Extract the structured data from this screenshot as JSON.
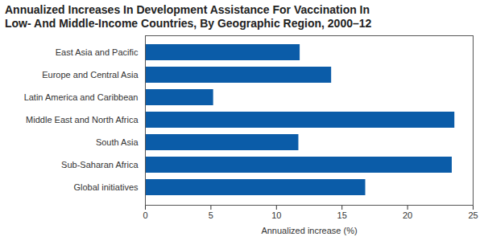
{
  "chart_data": {
    "type": "bar",
    "orientation": "horizontal",
    "title": "Annualized Increases In Development Assistance For Vaccination In Low- And Middle-Income Countries, By Geographic Region, 2000–12",
    "xlabel": "Annualized increase (%)",
    "categories": [
      "East Asia and Pacific",
      "Europe and Central Asia",
      "Latin America and Caribbean",
      "Middle East and North Africa",
      "South Asia",
      "Sub-Saharan Africa",
      "Global initiatives"
    ],
    "values": [
      11.8,
      14.2,
      5.2,
      23.6,
      11.7,
      23.4,
      16.8
    ],
    "color": "#0b5ca8",
    "xlim": [
      0,
      25
    ],
    "xticks": [
      0,
      5,
      10,
      15,
      20,
      25
    ],
    "grid": false
  }
}
